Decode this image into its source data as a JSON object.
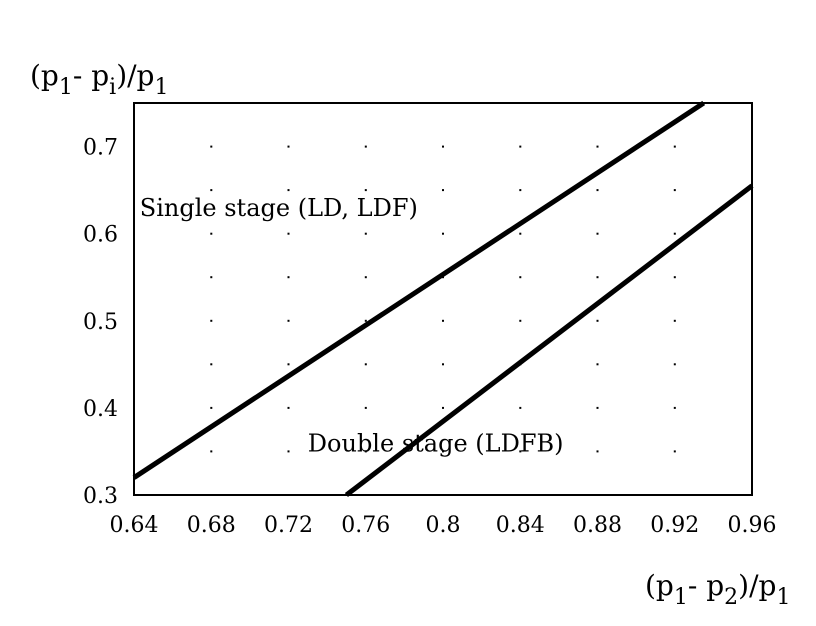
{
  "chart_data": {
    "type": "line",
    "ylabel": {
      "a": "(p",
      "s1": "1",
      "b": "- p",
      "s2": "i",
      "c": ")/p",
      "s3": "1"
    },
    "xlabel": {
      "a": "(p",
      "s1": "1",
      "b": "- p",
      "s2": "2",
      "c": ")/p",
      "s3": "1"
    },
    "xlim": [
      0.64,
      0.96
    ],
    "ylim": [
      0.3,
      0.75
    ],
    "x_ticks": [
      "0.64",
      "0.68",
      "0.72",
      "0.76",
      "0.8",
      "0.84",
      "0.88",
      "0.92",
      "0.96"
    ],
    "y_ticks": [
      "0.3",
      "0.4",
      "0.5",
      "0.6",
      "0.7"
    ],
    "grid": "dotted",
    "series": [
      {
        "x": [
          0.64,
          0.935
        ],
        "y": [
          0.32,
          0.75
        ],
        "color": "#000000"
      },
      {
        "x": [
          0.75,
          0.96
        ],
        "y": [
          0.3,
          0.655
        ],
        "color": "#000000"
      }
    ],
    "annotations": [
      {
        "text": "Single stage (LD, LDF)",
        "x": 0.643,
        "y": 0.62
      },
      {
        "text": "Double stage (LDFB)",
        "x": 0.73,
        "y": 0.35
      }
    ]
  }
}
